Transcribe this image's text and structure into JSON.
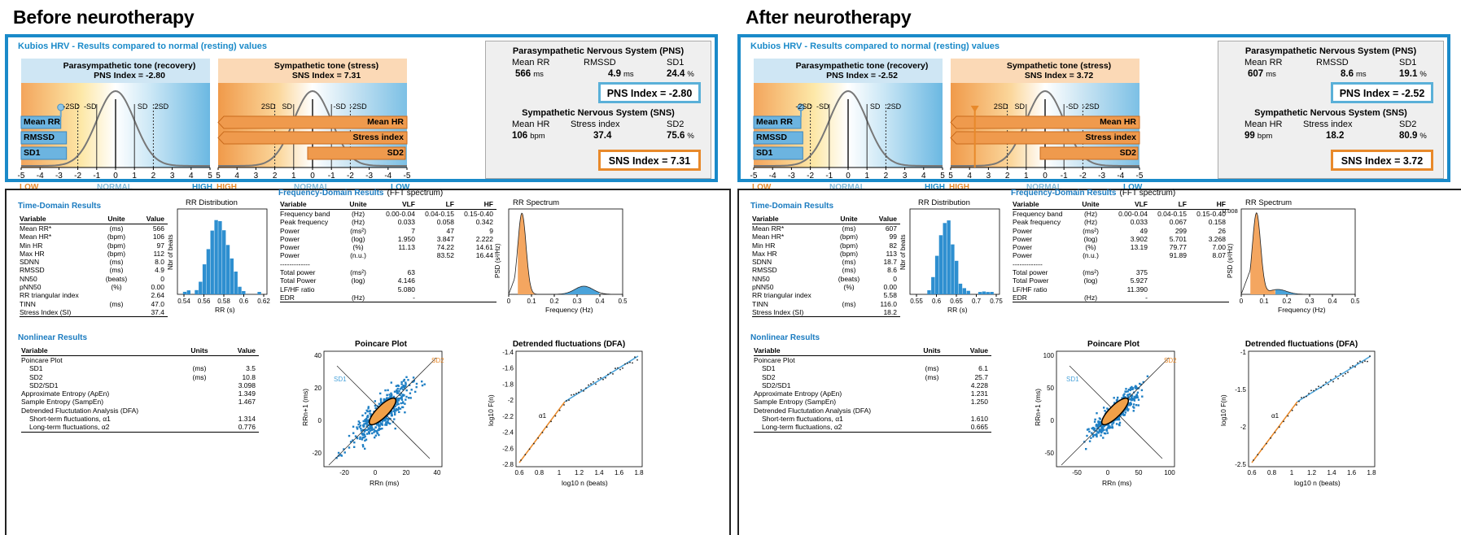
{
  "halves": [
    {
      "title": "Before neurotherapy",
      "kubios_title": "Kubios HRV - Results compared to normal (resting) values",
      "pns_panel": {
        "title": "Parasympathetic tone (recovery)",
        "index_text": "PNS Index = -2.80",
        "bars": [
          "Mean RR",
          "RMSSD",
          "SD1"
        ],
        "ticks": [
          "-5",
          "-4",
          "-3",
          "-2",
          "-1",
          "0",
          "1",
          "2",
          "3",
          "4",
          "5"
        ],
        "sd_labels": [
          "-2SD",
          "-SD",
          "SD",
          "2SD"
        ],
        "low": "LOW",
        "normal": "NORMAL",
        "high": "HIGH",
        "bar_values": [
          -2.9,
          -2.6,
          -2.6
        ]
      },
      "sns_panel": {
        "title": "Sympathetic tone (stress)",
        "index_text": "SNS Index = 7.31",
        "bars": [
          "Mean HR",
          "Stress index",
          "SD2"
        ],
        "ticks": [
          "5",
          "4",
          "3",
          "2",
          "1",
          "0",
          "-1",
          "-2",
          "-3",
          "-4",
          "-5"
        ],
        "sd_labels": [
          "2SD",
          "SD",
          "-SD",
          "-2SD"
        ],
        "high": "HIGH",
        "normal": "NORMAL",
        "low": "LOW"
      },
      "summary": {
        "pns_head": "Parasympathetic Nervous System (PNS)",
        "pns_cols": [
          "Mean RR",
          "RMSSD",
          "SD1"
        ],
        "pns_vals": [
          {
            "v": "566",
            "u": "ms"
          },
          {
            "v": "4.9",
            "u": "ms"
          },
          {
            "v": "24.4",
            "u": "%"
          }
        ],
        "pns_index": "PNS Index = -2.80",
        "sns_head": "Sympathetic Nervous System (SNS)",
        "sns_cols": [
          "Mean HR",
          "Stress index",
          "SD2"
        ],
        "sns_vals": [
          {
            "v": "106",
            "u": "bpm"
          },
          {
            "v": "37.4",
            "u": ""
          },
          {
            "v": "75.6",
            "u": "%"
          }
        ],
        "sns_index": "SNS Index = 7.31"
      },
      "time_domain": {
        "title": "Time-Domain Results",
        "headers": [
          "Variable",
          "Unite",
          "Value"
        ],
        "rows": [
          [
            "Mean RR*",
            "(ms)",
            "566"
          ],
          [
            "Mean HR*",
            "(bpm)",
            "106"
          ],
          [
            "Min HR",
            "(bpm)",
            "97"
          ],
          [
            "Max HR",
            "(bpm)",
            "112"
          ],
          [
            "SDNN",
            "(ms)",
            "8.0"
          ],
          [
            "RMSSD",
            "(ms)",
            "4.9"
          ],
          [
            "NN50",
            "(beats)",
            "0"
          ],
          [
            "pNN50",
            "(%)",
            "0.00"
          ],
          [
            "RR triangular index",
            "",
            "2.64"
          ],
          [
            "TINN",
            "(ms)",
            "47.0"
          ],
          [
            "Stress Index (SI)",
            "",
            "37.4"
          ]
        ]
      },
      "rr_dist": {
        "title": "RR Distribution",
        "ylabel": "Nbr of beats",
        "xlabel": "RR (s)",
        "xticks": [
          "0.54",
          "0.56",
          "0.58",
          "0.6",
          "0.62"
        ],
        "xlim": [
          0.53,
          0.625
        ]
      },
      "freq_domain": {
        "title": "Frequency-Domain Results",
        "subtitle": "(FFT spectrum)",
        "headers": [
          "Variable",
          "Unite",
          "VLF",
          "LF",
          "HF"
        ],
        "rows": [
          [
            "Frequency band",
            "(Hz)",
            "0.00-0.04",
            "0.04-0.15",
            "0.15-0.40"
          ],
          [
            "Peak frequency",
            "(Hz)",
            "0.033",
            "0.058",
            "0.342"
          ],
          [
            "Power",
            "(ms²)",
            "7",
            "47",
            "9"
          ],
          [
            "Power",
            "(log)",
            "1.950",
            "3.847",
            "2.222"
          ],
          [
            "Power",
            "(%)",
            "11.13",
            "74.22",
            "14.61"
          ],
          [
            "Power",
            "(n.u.)",
            "",
            "83.52",
            "16.44"
          ],
          [
            "-------------",
            "",
            "",
            "",
            ""
          ],
          [
            "Total power",
            "(ms²)",
            "63",
            "",
            ""
          ],
          [
            "Total Power",
            "(log)",
            "4.146",
            "",
            ""
          ],
          [
            "LF/HF ratio",
            "",
            "5.080",
            "",
            ""
          ],
          [
            "EDR",
            "(Hz)",
            "-",
            "",
            ""
          ]
        ]
      },
      "rr_spectrum": {
        "title": "RR Spectrum",
        "ylabel": "PSD (s²/Hz)",
        "xlabel": "Frequency (Hz)",
        "xticks": [
          "0",
          "0.1",
          "0.2",
          "0.3",
          "0.4",
          "0.5"
        ],
        "ytop": ""
      },
      "nonlinear": {
        "title": "Nonlinear Results",
        "headers": [
          "Variable",
          "Units",
          "Value"
        ],
        "rows": [
          [
            "Poincare Plot",
            "",
            ""
          ],
          [
            "  SD1",
            "(ms)",
            "3.5"
          ],
          [
            "  SD2",
            "(ms)",
            "10.8"
          ],
          [
            "  SD2/SD1",
            "",
            "3.098"
          ],
          [
            "Approximate Entropy (ApEn)",
            "",
            "1.349"
          ],
          [
            "Sample Entropy (SampEn)",
            "",
            "1.467"
          ],
          [
            "Detrended Fluctutation Analysis (DFA)",
            "",
            ""
          ],
          [
            "  Short-term fluctuations, α1",
            "",
            "1.314"
          ],
          [
            "  Long-term fluctuations, α2",
            "",
            "0.776"
          ]
        ]
      },
      "poincare": {
        "title": "Poincare Plot",
        "xlabel": "RRn (ms)",
        "ylabel": "RRn+1 (ms)",
        "xticks": [
          "-20",
          "0",
          "20",
          "40"
        ],
        "yticks": [
          "40",
          "20",
          "0",
          "-20"
        ],
        "sd1": "SD1",
        "sd2": "SD2"
      },
      "dfa": {
        "title": "Detrended fluctuations (DFA)",
        "xlabel": "log10 n (beats)",
        "ylabel": "log10 F(n)",
        "xticks": [
          "0.6",
          "0.8",
          "1",
          "1.2",
          "1.4",
          "1.6",
          "1.8"
        ],
        "yticks": [
          "-1.4",
          "-1.6",
          "-1.8",
          "-2",
          "-2.2",
          "-2.4",
          "-2.6",
          "-2.8"
        ],
        "alpha": "α1"
      }
    },
    {
      "title": "After neurotherapy",
      "kubios_title": "Kubios HRV - Results compared to normal (resting) values",
      "pns_panel": {
        "title": "Parasympathetic tone (recovery)",
        "index_text": "PNS Index = -2.52",
        "bars": [
          "Mean RR",
          "RMSSD",
          "SD1"
        ],
        "ticks": [
          "-5",
          "-4",
          "-3",
          "-2",
          "-1",
          "0",
          "1",
          "2",
          "3",
          "4",
          "5"
        ],
        "sd_labels": [
          "-2SD",
          "-SD",
          "SD",
          "2SD"
        ],
        "low": "LOW",
        "normal": "NORMAL",
        "high": "HIGH",
        "bar_values": [
          -2.5,
          -2.4,
          -2.4
        ]
      },
      "sns_panel": {
        "title": "Sympathetic tone (stress)",
        "index_text": "SNS Index = 3.72",
        "bars": [
          "Mean HR",
          "Stress index",
          "SD2"
        ],
        "ticks": [
          "5",
          "4",
          "3",
          "2",
          "1",
          "0",
          "-1",
          "-2",
          "-3",
          "-4",
          "-5"
        ],
        "sd_labels": [
          "2SD",
          "SD",
          "-SD",
          "-2SD"
        ],
        "high": "HIGH",
        "normal": "NORMAL",
        "low": "LOW"
      },
      "summary": {
        "pns_head": "Parasympathetic Nervous System (PNS)",
        "pns_cols": [
          "Mean RR",
          "RMSSD",
          "SD1"
        ],
        "pns_vals": [
          {
            "v": "607",
            "u": "ms"
          },
          {
            "v": "8.6",
            "u": "ms"
          },
          {
            "v": "19.1",
            "u": "%"
          }
        ],
        "pns_index": "PNS Index = -2.52",
        "sns_head": "Sympathetic Nervous System (SNS)",
        "sns_cols": [
          "Mean HR",
          "Stress index",
          "SD2"
        ],
        "sns_vals": [
          {
            "v": "99",
            "u": "bpm"
          },
          {
            "v": "18.2",
            "u": ""
          },
          {
            "v": "80.9",
            "u": "%"
          }
        ],
        "sns_index": "SNS Index = 3.72"
      },
      "time_domain": {
        "title": "Time-Domain Results",
        "headers": [
          "Variable",
          "Unite",
          "Value"
        ],
        "rows": [
          [
            "Mean RR*",
            "(ms)",
            "607"
          ],
          [
            "Mean HR*",
            "(bpm)",
            "99"
          ],
          [
            "Min HR",
            "(bpm)",
            "82"
          ],
          [
            "Max HR",
            "(bpm)",
            "113"
          ],
          [
            "SDNN",
            "(ms)",
            "18.7"
          ],
          [
            "RMSSD",
            "(ms)",
            "8.6"
          ],
          [
            "NN50",
            "(beats)",
            "0"
          ],
          [
            "pNN50",
            "(%)",
            "0.00"
          ],
          [
            "RR triangular index",
            "",
            "5.58"
          ],
          [
            "TINN",
            "(ms)",
            "116.0"
          ],
          [
            "Stress Index (SI)",
            "",
            "18.2"
          ]
        ]
      },
      "rr_dist": {
        "title": "RR Distribution",
        "ylabel": "Nbr of beats",
        "xlabel": "RR (s)",
        "xticks": [
          "0.55",
          "0.6",
          "0.65",
          "0.7",
          "0.75"
        ],
        "xlim": [
          0.52,
          0.77
        ]
      },
      "freq_domain": {
        "title": "Frequency-Domain Results",
        "subtitle": "(FFT spectrum)",
        "headers": [
          "Variable",
          "Unite",
          "VLF",
          "LF",
          "HF"
        ],
        "rows": [
          [
            "Frequency band",
            "(Hz)",
            "0.00-0.04",
            "0.04-0.15",
            "0.15-0.40"
          ],
          [
            "Peak frequency",
            "(Hz)",
            "0.033",
            "0.067",
            "0.158"
          ],
          [
            "Power",
            "(ms²)",
            "49",
            "299",
            "26"
          ],
          [
            "Power",
            "(log)",
            "3.902",
            "5.701",
            "3.268"
          ],
          [
            "Power",
            "(%)",
            "13.19",
            "79.77",
            "7.00"
          ],
          [
            "Power",
            "(n.u.)",
            "",
            "91.89",
            "8.07"
          ],
          [
            "-------------",
            "",
            "",
            "",
            ""
          ],
          [
            "Total power",
            "(ms²)",
            "375",
            "",
            ""
          ],
          [
            "Total Power",
            "(log)",
            "5.927",
            "",
            ""
          ],
          [
            "LF/HF ratio",
            "",
            "11.390",
            "",
            ""
          ],
          [
            "EDR",
            "(Hz)",
            "-",
            "",
            ""
          ]
        ]
      },
      "rr_spectrum": {
        "title": "RR Spectrum",
        "ylabel": "PSD (s²/Hz)",
        "xlabel": "Frequency (Hz)",
        "xticks": [
          "0",
          "0.1",
          "0.2",
          "0.3",
          "0.4",
          "0.5"
        ],
        "ytop": "0.008"
      },
      "nonlinear": {
        "title": "Nonlinear Results",
        "headers": [
          "Variable",
          "Units",
          "Value"
        ],
        "rows": [
          [
            "Poincare Plot",
            "",
            ""
          ],
          [
            "  SD1",
            "(ms)",
            "6.1"
          ],
          [
            "  SD2",
            "(ms)",
            "25.7"
          ],
          [
            "  SD2/SD1",
            "",
            "4.228"
          ],
          [
            "Approximate Entropy (ApEn)",
            "",
            "1.231"
          ],
          [
            "Sample Entropy (SampEn)",
            "",
            "1.250"
          ],
          [
            "Detrended Fluctutation Analysis (DFA)",
            "",
            ""
          ],
          [
            "  Short-term fluctuations, α1",
            "",
            "1.610"
          ],
          [
            "  Long-term fluctuations, α2",
            "",
            "0.665"
          ]
        ]
      },
      "poincare": {
        "title": "Poincare Plot",
        "xlabel": "RRn (ms)",
        "ylabel": "RRn+1 (ms)",
        "xticks": [
          "-50",
          "0",
          "50",
          "100"
        ],
        "yticks": [
          "100",
          "50",
          "0",
          "-50"
        ],
        "sd1": "SD1",
        "sd2": "SD2"
      },
      "dfa": {
        "title": "Detrended fluctuations (DFA)",
        "xlabel": "log10 n (beats)",
        "ylabel": "log10 F(n)",
        "xticks": [
          "0.6",
          "0.8",
          "1",
          "1.2",
          "1.4",
          "1.6",
          "1.8"
        ],
        "yticks": [
          "-1",
          "-1.5",
          "-2",
          "-2.5"
        ],
        "alpha": "α1"
      }
    }
  ],
  "colors": {
    "blue": "#1a8ac9",
    "orange": "#e8892a",
    "light_blue": "#9fd0ec",
    "light_orange": "#f7c48f",
    "bar_blue": "#4aa3da"
  }
}
